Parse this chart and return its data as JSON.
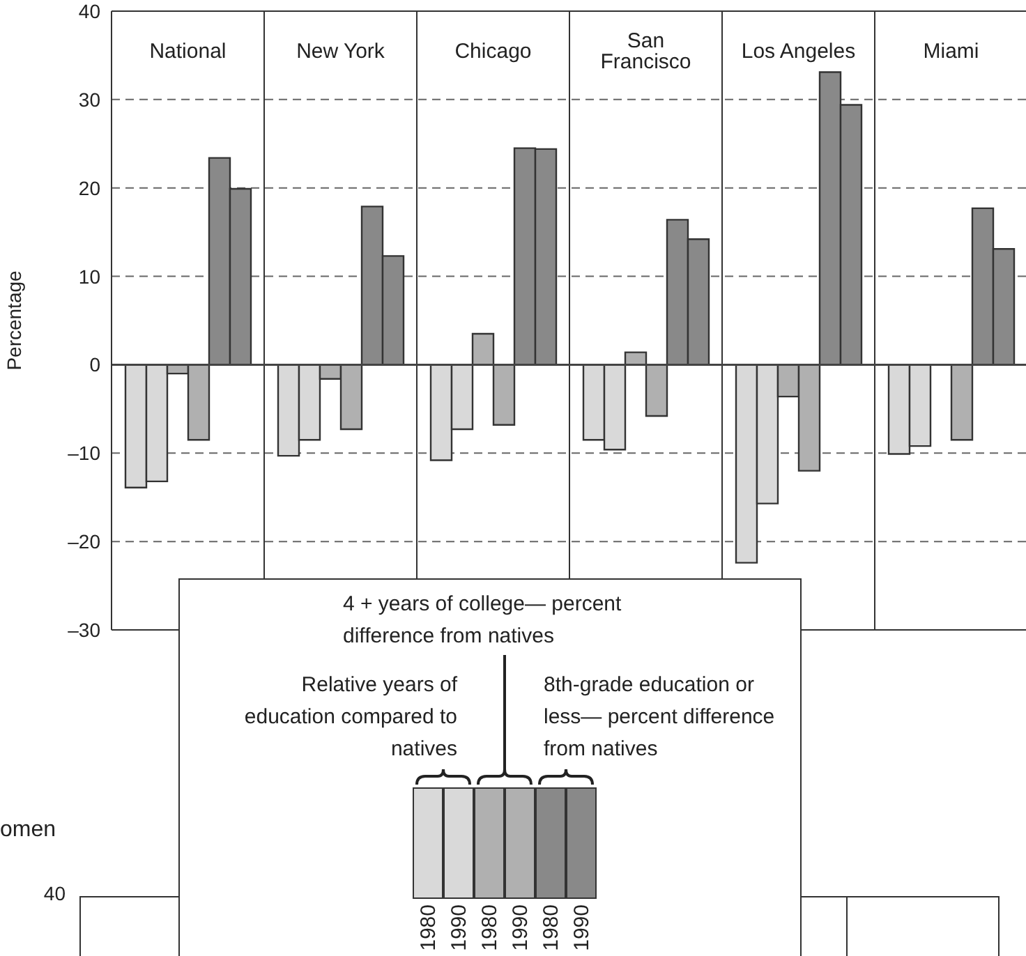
{
  "chart_data": {
    "type": "bar",
    "ylabel": "Percentage",
    "categories": [
      "National",
      "New York",
      "Chicago",
      "San Francisco",
      "Los Angeles",
      "Miami"
    ],
    "series": [
      {
        "color": "#d9d9d9",
        "values": [
          -13.9,
          -10.3,
          -10.8,
          -8.5,
          -22.4,
          -10.1
        ]
      },
      {
        "color": "#d9d9d9",
        "values": [
          -13.2,
          -8.5,
          -7.3,
          -9.6,
          -15.7,
          -9.2
        ]
      },
      {
        "color": "#b0b0b0",
        "values": [
          -1.0,
          -1.6,
          3.5,
          1.4,
          -3.6,
          null
        ]
      },
      {
        "color": "#b0b0b0",
        "values": [
          -8.5,
          -7.3,
          -6.8,
          -5.8,
          -12.0,
          -8.5
        ]
      },
      {
        "color": "#898989",
        "values": [
          23.4,
          17.9,
          24.5,
          16.4,
          33.1,
          17.7
        ]
      },
      {
        "color": "#898989",
        "values": [
          19.9,
          12.3,
          24.4,
          14.2,
          29.4,
          13.1
        ]
      }
    ],
    "ylim": [
      -30,
      40
    ],
    "yticks": [
      {
        "value": -30,
        "label": "–30"
      },
      {
        "value": -20,
        "label": "–20"
      },
      {
        "value": -10,
        "label": "–10"
      },
      0,
      10,
      20,
      30,
      40
    ],
    "grid": "y",
    "annotations": [
      "4 + years of college— percent difference from natives",
      "Relative years of education compared to natives",
      "8th-grade education or less— percent difference from natives",
      "1980",
      "1990",
      "1980",
      "1990",
      "1980",
      "1990",
      "omen",
      "40"
    ]
  }
}
